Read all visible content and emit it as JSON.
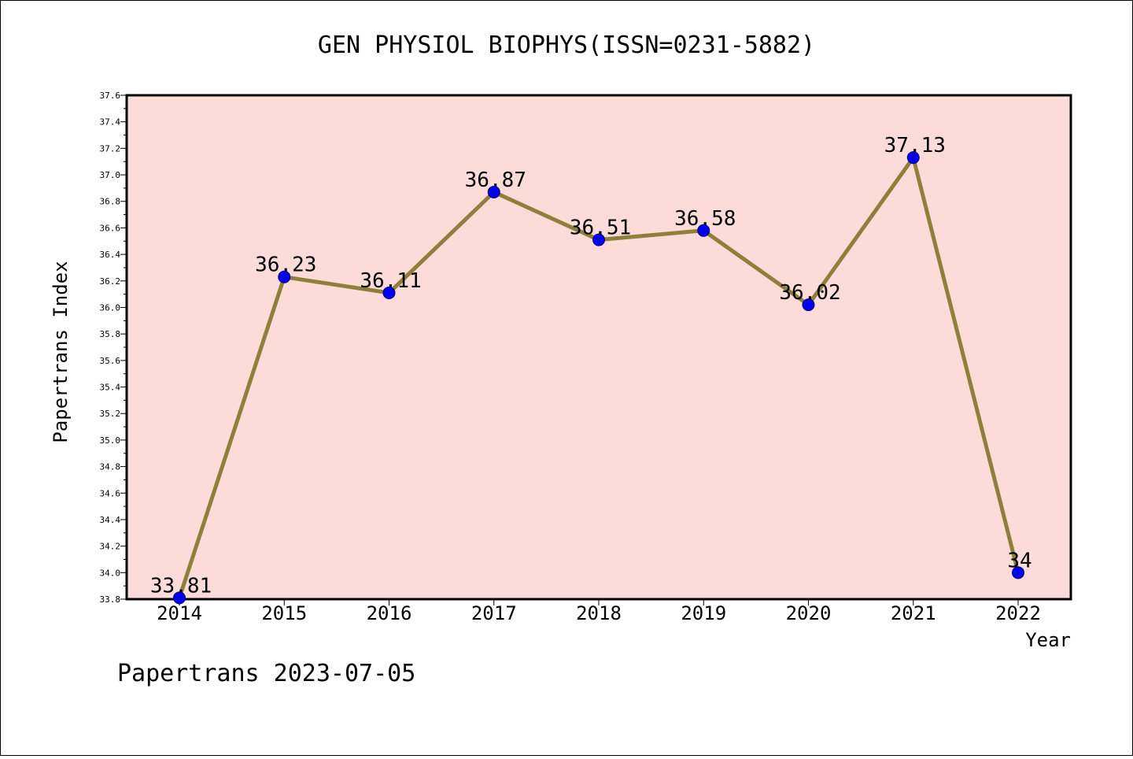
{
  "chart_data": {
    "type": "line",
    "title": "GEN PHYSIOL BIOPHYS(ISSN=0231-5882)",
    "xlabel": "Year",
    "ylabel": "Papertrans Index",
    "footer": "Papertrans 2023-07-05",
    "categories": [
      "2014",
      "2015",
      "2016",
      "2017",
      "2018",
      "2019",
      "2020",
      "2021",
      "2022"
    ],
    "values": [
      33.81,
      36.23,
      36.11,
      36.87,
      36.51,
      36.58,
      36.02,
      37.13,
      34
    ],
    "value_labels": [
      "33.81",
      "36.23",
      "36.11",
      "36.87",
      "36.51",
      "36.58",
      "36.02",
      "37.13",
      "34"
    ],
    "ylim": [
      33.8,
      37.6
    ],
    "yticks": [
      "33.8",
      "34.0",
      "34.2",
      "34.4",
      "34.6",
      "34.8",
      "35.0",
      "35.2",
      "35.4",
      "35.6",
      "35.8",
      "36.0",
      "36.2",
      "36.4",
      "36.6",
      "36.8",
      "37.0",
      "37.2",
      "37.4",
      "37.6"
    ],
    "grid": false,
    "colors": {
      "plot_background": "#fddbd9",
      "line": "#8f7f3a",
      "marker": "#0000ee",
      "marker_edge": "#00007a"
    }
  }
}
